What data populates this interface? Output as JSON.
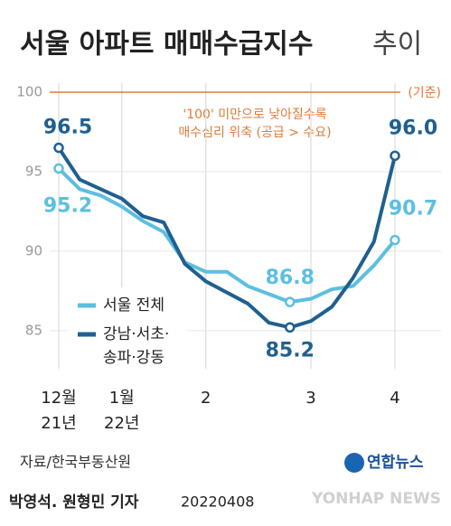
{
  "chart_data": {
    "type": "line",
    "title": "서울 아파트 매매수급지수",
    "title_suffix": "추이",
    "unit_label": "(기준)",
    "annotation": "'100' 미만으로 낮아질수록\n매수심리 위축 (공급 > 수요)",
    "categories": [
      "12월\n21년",
      null,
      null,
      "1월\n22년",
      null,
      null,
      null,
      "2",
      null,
      null,
      null,
      null,
      "3",
      null,
      null,
      null,
      "4"
    ],
    "series": [
      {
        "name": "서울 전체",
        "color": "#5cbfe0",
        "values": [
          95.2,
          93.9,
          93.5,
          92.8,
          91.9,
          91.2,
          89.3,
          88.7,
          88.7,
          87.8,
          87.3,
          86.8,
          87.0,
          87.6,
          87.8,
          89.1,
          90.7
        ],
        "value_labels": [
          "95.2",
          null,
          null,
          null,
          null,
          null,
          null,
          null,
          null,
          null,
          null,
          "86.8",
          null,
          null,
          null,
          null,
          "90.7"
        ]
      },
      {
        "name": "강남·서초·\n송파·강동",
        "color": "#1f6090",
        "values": [
          96.5,
          94.5,
          93.9,
          93.3,
          92.2,
          91.8,
          89.2,
          88.1,
          87.4,
          86.7,
          85.5,
          85.2,
          85.6,
          86.5,
          88.3,
          90.6,
          96.0
        ],
        "value_labels": [
          "96.5",
          null,
          null,
          null,
          null,
          null,
          null,
          null,
          null,
          null,
          null,
          "85.2",
          null,
          null,
          null,
          null,
          "96.0"
        ]
      }
    ],
    "ylim": [
      83,
      100
    ],
    "yticks": [
      85,
      90,
      95,
      100
    ],
    "reference_line": 100,
    "reference_color": "#e07b3a",
    "grid": true,
    "legend": "lower left",
    "source": "자료/한국부동산원",
    "logo": "연합뉴스",
    "byline": "박영석. 원형민 기자",
    "date": "20220408",
    "watermark": "YONHAP NEWS"
  }
}
